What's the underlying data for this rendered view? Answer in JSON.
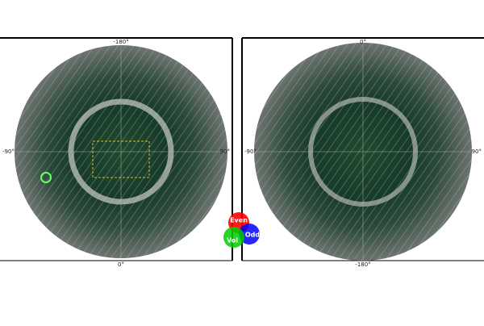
{
  "panels": [
    {
      "top": "-180°",
      "left": "-90°",
      "right": "90°",
      "bottom": "0°"
    },
    {
      "top": "0°",
      "left": "-90°",
      "right": "90°",
      "bottom": "-180°"
    }
  ],
  "legend": {
    "red": "Even",
    "blue": "Odd",
    "green": "Vol"
  }
}
